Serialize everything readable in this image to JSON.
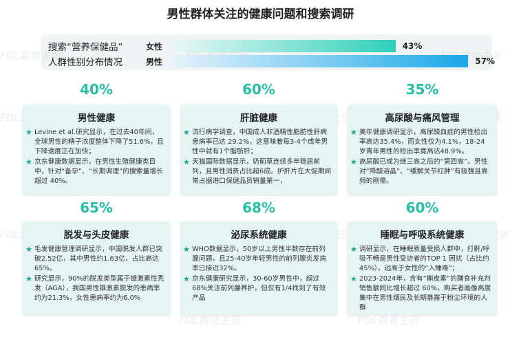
{
  "header": {
    "title": "男性群体关注的健康问题和搜索调研"
  },
  "watermark": "FDL数食主张",
  "search_bars": {
    "label_lines": [
      "搜索“营养保健品”",
      "人群性别分布情况"
    ],
    "rows": [
      {
        "name": "女性",
        "value": 43,
        "value_label": "43%"
      },
      {
        "name": "男性",
        "value": 57,
        "value_label": "57%"
      }
    ]
  },
  "cards": [
    {
      "percent": "40%",
      "title": "男性健康",
      "items": [
        "Levine et al.研究显示，在过去40年间，全球男性的精子浓度整体下降了51.6%，且下降速度正在加快；",
        "京东健康数据显示，在男性生殖健康类目中，针对“备孕”、“长期调理”的搜索量增长超过 40%。"
      ]
    },
    {
      "percent": "60%",
      "title": "肝脏健康",
      "items": [
        "流行病学调查，中国成人非酒精性脂肪性肝病患病率已达 29.2%，这意味着每3-4个成年男性中就有1个脂肪肝；",
        "天猫国际数据显示，奶蓟草连续多年稳居前列，且男性消费占比超6成。护肝片在大促期间常占据进口保健品员销量第一，"
      ]
    },
    {
      "percent": "35%",
      "title": "高尿酸与痛风管理",
      "items": [
        "美年健康调研显示，高尿酸血症的男性检出率高达35.4%，而女性仅为4.1%，18-24岁青年男性的检出率竟高达48.9%。",
        "高尿酸已成为继三高之后的“第四高”。男性对“降酸溶晶”、“缓解关节红肿”有极强且高频的刚需。"
      ]
    },
    {
      "percent": "65%",
      "title": "脱发与头皮健康",
      "items": [
        "毛发健康管理调研显示，中国脱发人群已突破2.52亿，其中男性约1.63亿，占比高达65%。",
        "研究显示，90%的脱发类型属于雄激素性秃发（AGA），我国男性雄激素脱发的患病率约为21.3%，女性患病率约为6.0%"
      ]
    },
    {
      "percent": "68%",
      "title": "泌尿系统健康",
      "items": [
        "WHO数据显示，50岁以上男性半数存在前列腺问题，且25-40岁年轻男性的前列腺炎发病率已接近32%。",
        "京东健康研究显示，30-60岁男性中，超过68%关注前列腺养护，但仅有1/4找到了有效产品"
      ]
    },
    {
      "percent": "60%",
      "title": "睡眠与呼吸系统健康",
      "items": [
        "调研显示，在睡眠质量受损人群中，打鼾/呼吸不畅是男性受访者的TOP 1 困扰（占比约45%），远高于女性的“入睡难”；",
        "2023-2024年，含有“槲皮素”的膳食补充剂销售额同比增长超过 60%，购买者画像高度集中在男性烟民及长期暴露于粉尘环境的人群"
      ]
    }
  ]
}
